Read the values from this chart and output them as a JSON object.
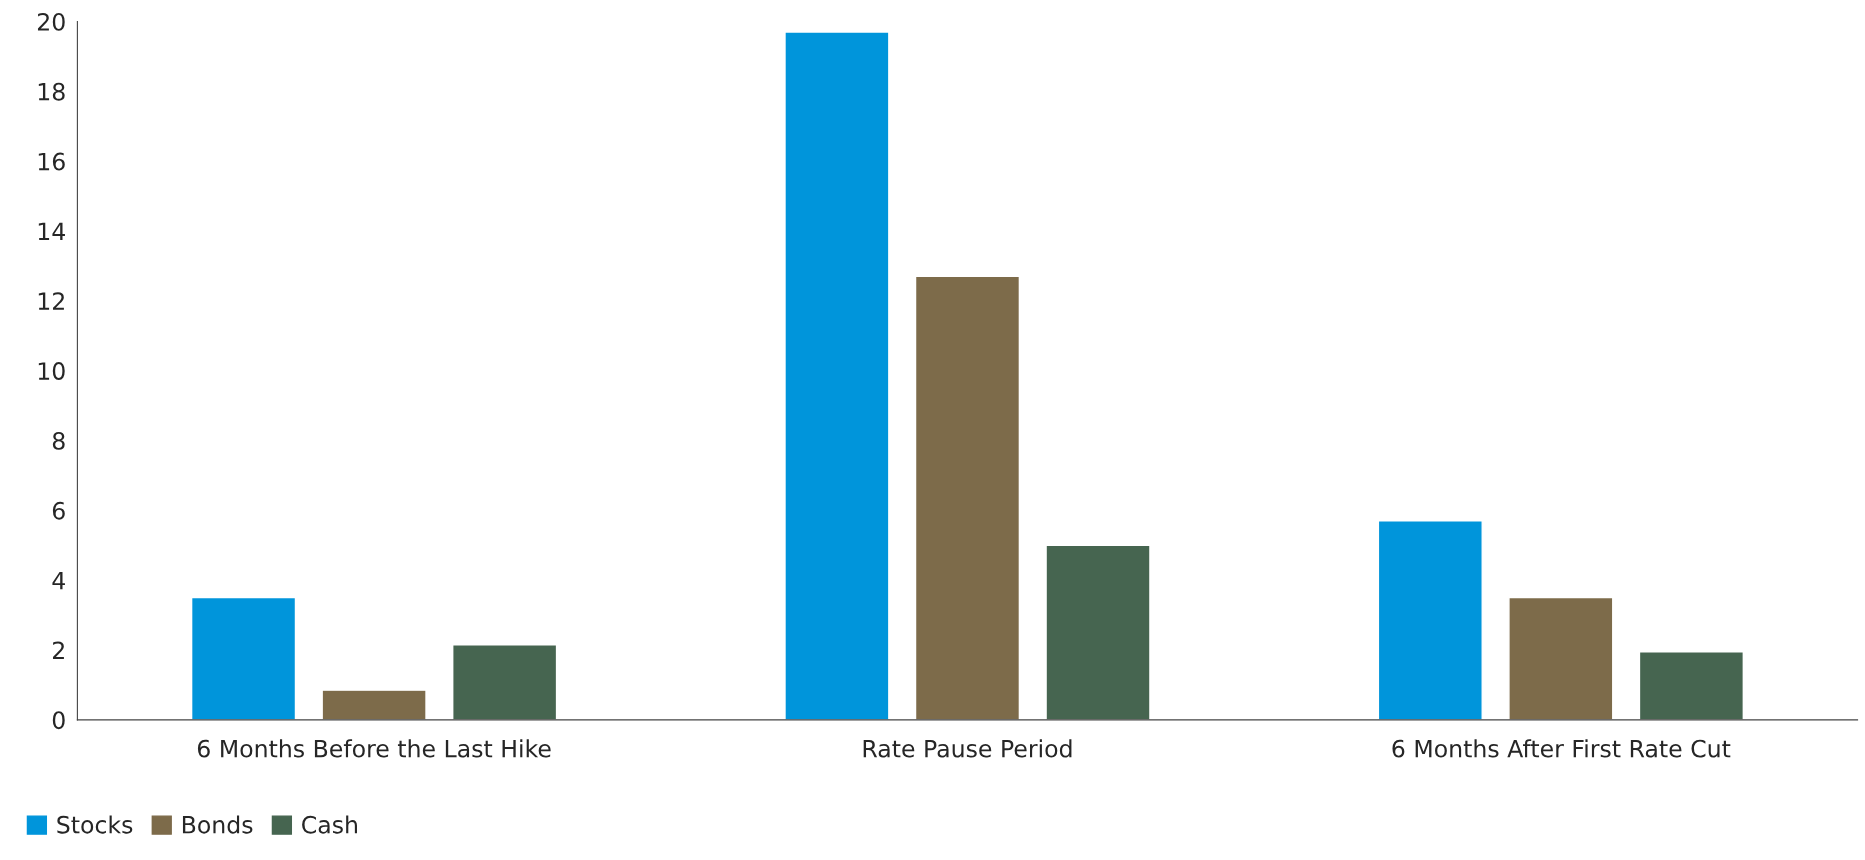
{
  "chart_data": {
    "type": "bar",
    "categories": [
      "6 Months Before the Last Hike",
      "Rate Pause Period",
      "6 Months After First Rate Cut"
    ],
    "series": [
      {
        "name": "Stocks",
        "color": "#0095db",
        "values": [
          3.5,
          19.7,
          5.7
        ]
      },
      {
        "name": "Bonds",
        "color": "#7d6b4a",
        "values": [
          0.85,
          12.7,
          3.5
        ]
      },
      {
        "name": "Cash",
        "color": "#466550",
        "values": [
          2.15,
          5.0,
          1.95
        ]
      }
    ],
    "ylim": [
      0,
      20
    ],
    "yticks": [
      0,
      2,
      4,
      6,
      8,
      10,
      12,
      14,
      16,
      18,
      20
    ],
    "grid": false,
    "legend": "bottom left"
  }
}
